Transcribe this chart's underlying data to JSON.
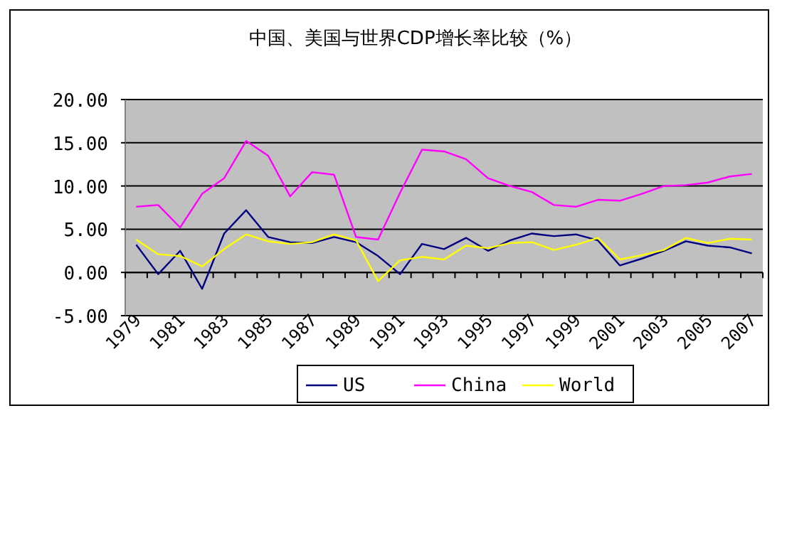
{
  "chart_data": {
    "type": "line",
    "title": "中国、美国与世界CDP增长率比较（%）",
    "categories": [
      "1979",
      null,
      "1981",
      null,
      "1983",
      null,
      "1985",
      null,
      "1987",
      null,
      "1989",
      null,
      "1991",
      null,
      "1993",
      null,
      "1995",
      null,
      "1997",
      null,
      "1999",
      null,
      "2001",
      null,
      "2003",
      null,
      "2005",
      null,
      "2007"
    ],
    "series": [
      {
        "name": "US",
        "color": "#000080",
        "values": [
          3.2,
          -0.2,
          2.5,
          -1.9,
          4.5,
          7.2,
          4.1,
          3.5,
          3.4,
          4.1,
          3.5,
          1.9,
          -0.2,
          3.3,
          2.7,
          4.0,
          2.5,
          3.7,
          4.5,
          4.2,
          4.4,
          3.7,
          0.8,
          1.6,
          2.5,
          3.6,
          3.1,
          2.9,
          2.2
        ]
      },
      {
        "name": "China",
        "color": "#ff00ff",
        "values": [
          7.6,
          7.8,
          5.2,
          9.1,
          10.9,
          15.2,
          13.5,
          8.8,
          11.6,
          11.3,
          4.1,
          3.8,
          9.2,
          14.2,
          14.0,
          13.1,
          10.9,
          10.0,
          9.3,
          7.8,
          7.6,
          8.4,
          8.3,
          9.1,
          10.0,
          10.1,
          10.4,
          11.1,
          11.4
        ]
      },
      {
        "name": "World",
        "color": "#ffff00",
        "values": [
          3.8,
          2.1,
          1.9,
          0.7,
          2.7,
          4.4,
          3.6,
          3.3,
          3.5,
          4.4,
          3.7,
          -1.0,
          1.4,
          1.8,
          1.5,
          3.1,
          2.8,
          3.4,
          3.5,
          2.6,
          3.2,
          4.0,
          1.5,
          2.0,
          2.6,
          4.0,
          3.4,
          3.9,
          3.8
        ]
      }
    ],
    "ylim": [
      -5,
      20
    ],
    "yticks": [
      {
        "value": -5,
        "label": "-5.00"
      },
      {
        "value": 0,
        "label": "0.00"
      },
      {
        "value": 5,
        "label": "5.00"
      },
      {
        "value": 10,
        "label": "10.00"
      },
      {
        "value": 15,
        "label": "15.00"
      },
      {
        "value": 20,
        "label": "20.00"
      }
    ],
    "grid": "y",
    "legend": "bottom",
    "marker": "none",
    "line_style": "solid"
  }
}
